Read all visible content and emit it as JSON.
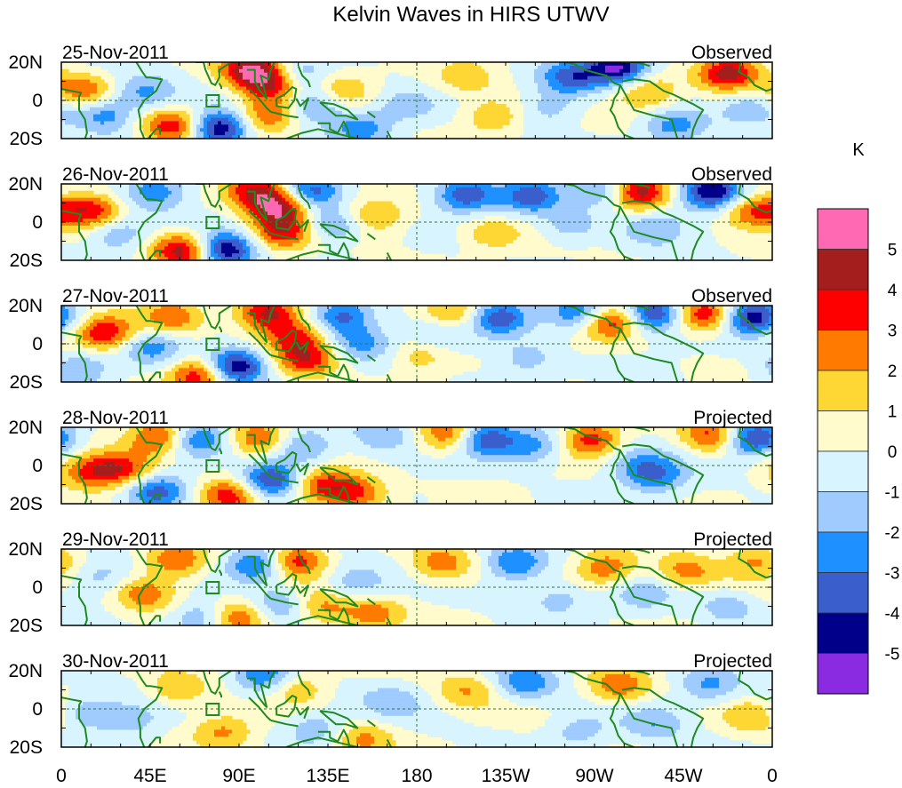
{
  "chart_data": {
    "type": "heatmap",
    "title": "Kelvin Waves in HIRS UTWV",
    "colorbar": {
      "unit": "K",
      "colors": [
        "#8a2be2",
        "#00008b",
        "#3a5fcd",
        "#1e90ff",
        "#9fcbff",
        "#d8f4ff",
        "#fffbcd",
        "#ffd735",
        "#ff7a00",
        "#ff0000",
        "#a51e1e",
        "#ff69b4"
      ],
      "tick_values": [
        -5,
        -4,
        -3,
        -2,
        -1,
        0,
        1,
        2,
        3,
        4,
        5
      ],
      "tick_labels": [
        "-5",
        "-4",
        "-3",
        "-2",
        "-1",
        "0",
        "1",
        "2",
        "3",
        "4",
        "5"
      ]
    },
    "x_ticks": [
      {
        "lon": 0,
        "label": "0"
      },
      {
        "lon": 45,
        "label": "45E"
      },
      {
        "lon": 90,
        "label": "90E"
      },
      {
        "lon": 135,
        "label": "135E"
      },
      {
        "lon": 180,
        "label": "180"
      },
      {
        "lon": 225,
        "label": "135W"
      },
      {
        "lon": 270,
        "label": "90W"
      },
      {
        "lon": 315,
        "label": "45W"
      },
      {
        "lon": 360,
        "label": "0"
      }
    ],
    "y_ticks": [
      {
        "lat": 20,
        "label": "20N"
      },
      {
        "lat": 0,
        "label": "0"
      },
      {
        "lat": -20,
        "label": "20S"
      }
    ],
    "xlim": [
      0,
      360
    ],
    "ylim": [
      -20,
      20
    ],
    "panels": [
      {
        "date": "25-Nov-2011",
        "kind": "Observed",
        "amp": 1.0,
        "blobs": [
          [
            10,
            5,
            2.8
          ],
          [
            22,
            -7,
            -2.6
          ],
          [
            42,
            4,
            -2.4
          ],
          [
            56,
            -14,
            3.8
          ],
          [
            80,
            -15,
            -5.2
          ],
          [
            96,
            16,
            4.8
          ],
          [
            108,
            8,
            4.2
          ],
          [
            104,
            -8,
            3.4
          ],
          [
            118,
            12,
            -2.6
          ],
          [
            128,
            -2,
            -2.6
          ],
          [
            142,
            6,
            2.0
          ],
          [
            152,
            -14,
            -2.6
          ],
          [
            174,
            -3,
            -1.6
          ],
          [
            205,
            12,
            1.6
          ],
          [
            218,
            -8,
            2.2
          ],
          [
            248,
            -4,
            -1.6
          ],
          [
            258,
            12,
            -3.4
          ],
          [
            282,
            17,
            -5.2
          ],
          [
            296,
            4,
            2.4
          ],
          [
            310,
            -14,
            -2.4
          ],
          [
            338,
            14,
            4.8
          ],
          [
            350,
            -4,
            -1.8
          ]
        ]
      },
      {
        "date": "26-Nov-2011",
        "kind": "Observed",
        "amp": 1.0,
        "blobs": [
          [
            15,
            6,
            3.6
          ],
          [
            28,
            -6,
            -2.2
          ],
          [
            48,
            16,
            -2.8
          ],
          [
            62,
            -15,
            4.8
          ],
          [
            82,
            -15,
            -5.2
          ],
          [
            98,
            17,
            3.8
          ],
          [
            110,
            8,
            4.8
          ],
          [
            112,
            -6,
            3.6
          ],
          [
            126,
            16,
            -3.6
          ],
          [
            138,
            -2,
            -2.6
          ],
          [
            158,
            3,
            2.2
          ],
          [
            205,
            14,
            -3.6
          ],
          [
            218,
            -6,
            1.8
          ],
          [
            238,
            14,
            -3.6
          ],
          [
            258,
            -2,
            -1.6
          ],
          [
            276,
            16,
            -2.8
          ],
          [
            292,
            16,
            5.0
          ],
          [
            300,
            -3,
            -1.8
          ],
          [
            330,
            16,
            -5.0
          ],
          [
            350,
            6,
            3.4
          ]
        ]
      },
      {
        "date": "27-Nov-2011",
        "kind": "Observed",
        "amp": 1.0,
        "blobs": [
          [
            22,
            6,
            4.0
          ],
          [
            10,
            -12,
            -2.2
          ],
          [
            45,
            -2,
            -2.4
          ],
          [
            56,
            14,
            2.8
          ],
          [
            70,
            -16,
            4.2
          ],
          [
            88,
            -12,
            -5.2
          ],
          [
            104,
            16,
            4.2
          ],
          [
            118,
            4,
            3.0
          ],
          [
            124,
            -8,
            3.4
          ],
          [
            142,
            14,
            -3.4
          ],
          [
            152,
            0,
            -2.4
          ],
          [
            182,
            -6,
            1.8
          ],
          [
            190,
            5,
            -1.6
          ],
          [
            198,
            16,
            2.6
          ],
          [
            222,
            14,
            -3.8
          ],
          [
            236,
            -8,
            -1.6
          ],
          [
            262,
            16,
            -3.6
          ],
          [
            278,
            12,
            4.2
          ],
          [
            300,
            16,
            -4.2
          ],
          [
            325,
            15,
            4.2
          ],
          [
            350,
            14,
            -5.0
          ]
        ]
      },
      {
        "date": "28-Nov-2011",
        "kind": "Projected",
        "amp": 1.0,
        "blobs": [
          [
            15,
            -3,
            3.0
          ],
          [
            32,
            -2,
            3.2
          ],
          [
            48,
            -14,
            -3.4
          ],
          [
            50,
            15,
            3.6
          ],
          [
            68,
            14,
            -3.2
          ],
          [
            85,
            -16,
            3.8
          ],
          [
            100,
            14,
            3.0
          ],
          [
            106,
            -8,
            -4.6
          ],
          [
            122,
            10,
            -2.6
          ],
          [
            132,
            -10,
            3.2
          ],
          [
            150,
            -14,
            3.0
          ],
          [
            162,
            16,
            -1.8
          ],
          [
            196,
            16,
            3.2
          ],
          [
            215,
            14,
            -4.2
          ],
          [
            240,
            10,
            -2.6
          ],
          [
            268,
            14,
            3.6
          ],
          [
            292,
            0,
            -1.8
          ],
          [
            302,
            -6,
            -2.4
          ],
          [
            330,
            16,
            3.4
          ],
          [
            350,
            14,
            -4.6
          ]
        ]
      },
      {
        "date": "29-Nov-2011",
        "kind": "Projected",
        "amp": 1.0,
        "blobs": [
          [
            20,
            6,
            -1.6
          ],
          [
            42,
            -4,
            2.8
          ],
          [
            58,
            14,
            3.2
          ],
          [
            74,
            -16,
            -2.6
          ],
          [
            88,
            -16,
            3.6
          ],
          [
            100,
            12,
            -3.8
          ],
          [
            118,
            14,
            3.8
          ],
          [
            110,
            -10,
            -2.2
          ],
          [
            132,
            -10,
            2.4
          ],
          [
            148,
            2,
            -1.8
          ],
          [
            158,
            -14,
            2.6
          ],
          [
            192,
            12,
            2.6
          ],
          [
            230,
            12,
            -3.2
          ],
          [
            252,
            -6,
            -1.6
          ],
          [
            276,
            10,
            3.0
          ],
          [
            294,
            -4,
            -1.6
          ],
          [
            316,
            8,
            2.4
          ],
          [
            338,
            -10,
            -1.4
          ],
          [
            352,
            14,
            2.2
          ]
        ]
      },
      {
        "date": "30-Nov-2011",
        "kind": "Projected",
        "amp": 1.0,
        "blobs": [
          [
            12,
            -2,
            -1.8
          ],
          [
            36,
            -6,
            -1.4
          ],
          [
            58,
            10,
            2.0
          ],
          [
            82,
            -12,
            2.2
          ],
          [
            104,
            16,
            -3.2
          ],
          [
            118,
            12,
            2.2
          ],
          [
            130,
            -10,
            -1.8
          ],
          [
            152,
            -16,
            2.2
          ],
          [
            168,
            4,
            -1.4
          ],
          [
            205,
            10,
            1.8
          ],
          [
            235,
            14,
            -2.8
          ],
          [
            262,
            -12,
            -1.6
          ],
          [
            282,
            12,
            2.8
          ],
          [
            300,
            -8,
            -1.6
          ],
          [
            328,
            12,
            -2.2
          ],
          [
            350,
            -4,
            1.6
          ]
        ]
      }
    ]
  }
}
